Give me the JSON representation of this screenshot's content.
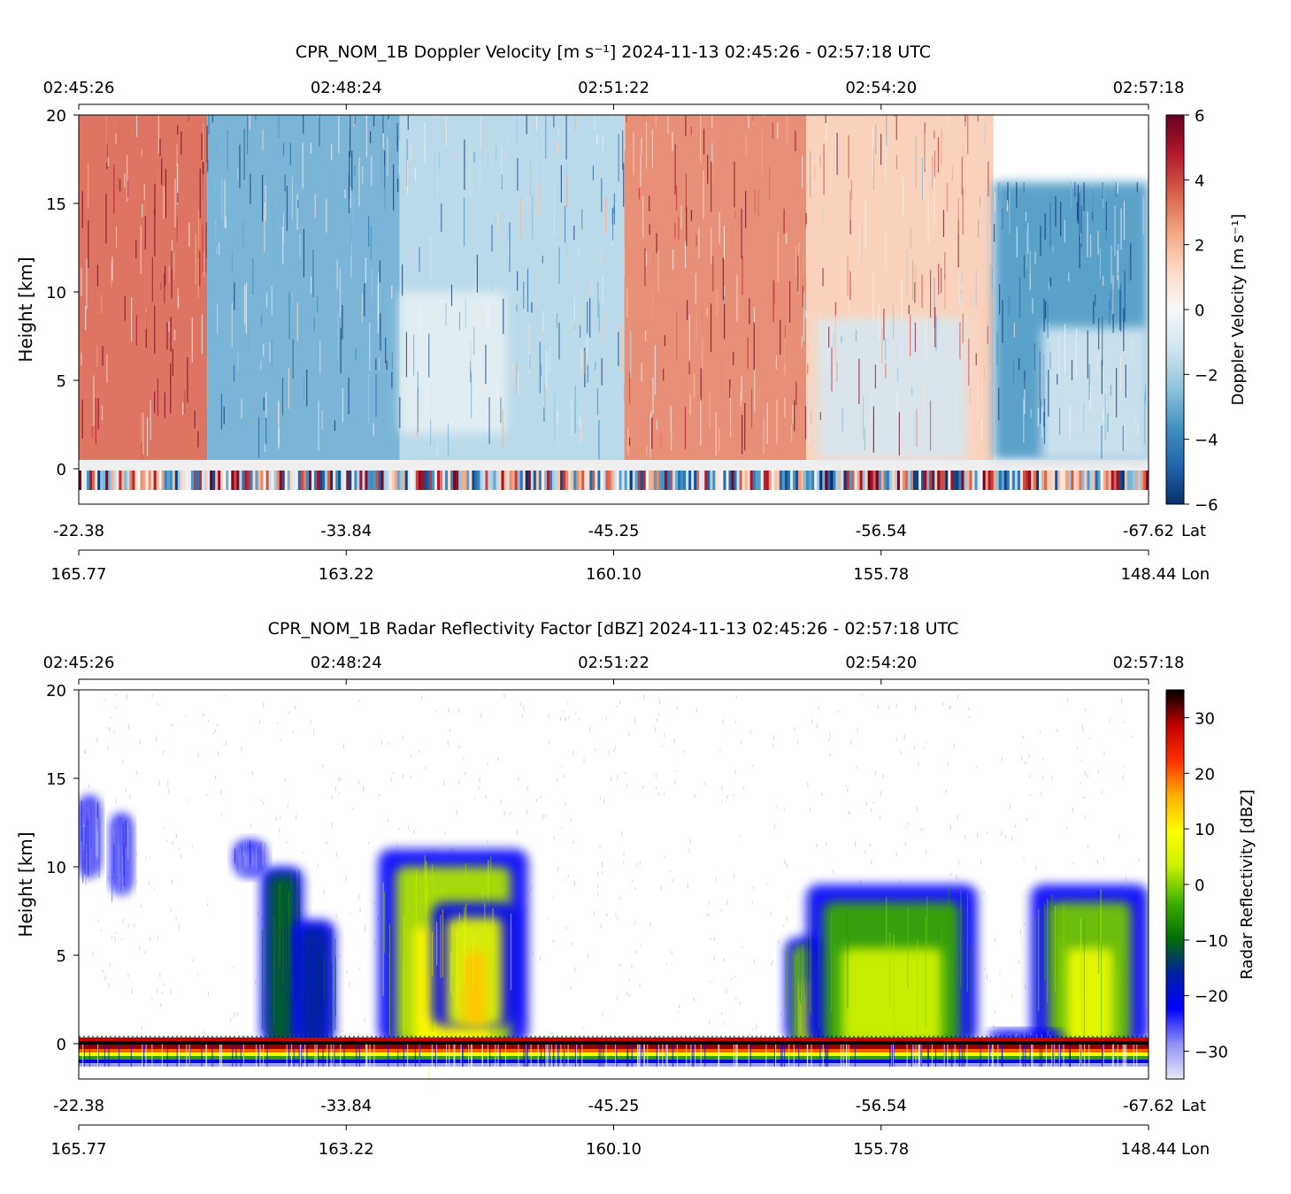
{
  "chart_data": [
    {
      "type": "heatmap",
      "title": "CPR_NOM_1B Doppler Velocity [m s⁻¹]    2024-11-13    02:45:26 - 02:57:18 UTC",
      "ylabel": "Height [km]",
      "ylim": [
        -2,
        20
      ],
      "yticks": [
        0,
        5,
        10,
        15,
        20
      ],
      "time_ticks": [
        "02:45:26",
        "02:48:24",
        "02:51:22",
        "02:54:20",
        "02:57:18"
      ],
      "lat_ticks": [
        "-22.38",
        "-33.84",
        "-45.25",
        "-56.54",
        "-67.62"
      ],
      "lon_ticks": [
        "165.77",
        "163.22",
        "160.10",
        "155.78",
        "148.44"
      ],
      "lat_label": "Lat",
      "lon_label": "Lon",
      "colorbar": {
        "label": "Doppler Velocity [m s⁻¹]",
        "range": [
          -6,
          6
        ],
        "ticks": [
          -6,
          -4,
          -2,
          0,
          2,
          4,
          6
        ],
        "tick_labels": [
          "−6",
          "−4",
          "−2",
          "0",
          "2",
          "4",
          "6"
        ],
        "colormap": [
          "#08306b",
          "#2166ac",
          "#4393c3",
          "#92c5de",
          "#d1e5f0",
          "#f7f7f7",
          "#fddbc7",
          "#f4a582",
          "#d6604d",
          "#b2182b",
          "#67001f"
        ]
      },
      "regions": [
        {
          "x": [
            0.0,
            0.12
          ],
          "y": [
            0.5,
            20
          ],
          "mean_velocity": 3.5
        },
        {
          "x": [
            0.12,
            0.3
          ],
          "y": [
            0.5,
            20
          ],
          "mean_velocity": -3
        },
        {
          "x": [
            0.3,
            0.51
          ],
          "y": [
            0.5,
            20
          ],
          "mean_velocity": -1.8
        },
        {
          "x": [
            0.51,
            0.68
          ],
          "y": [
            0.5,
            20
          ],
          "mean_velocity": 3
        },
        {
          "x": [
            0.68,
            0.855
          ],
          "y": [
            0.5,
            20
          ],
          "mean_velocity": 1.5
        },
        {
          "x": [
            0.855,
            1.0
          ],
          "y": [
            0.5,
            16.2
          ],
          "mean_velocity": -3.5
        },
        {
          "x": [
            0.3,
            0.4
          ],
          "y": [
            2,
            10
          ],
          "mean_velocity": -0.5
        },
        {
          "x": [
            0.69,
            0.83
          ],
          "y": [
            0.5,
            8.5
          ],
          "mean_velocity": -1
        },
        {
          "x": [
            0.9,
            1.0
          ],
          "y": [
            0.5,
            8
          ],
          "mean_velocity": -1
        }
      ]
    },
    {
      "type": "heatmap",
      "title": "CPR_NOM_1B Radar Reflectivity Factor [dBZ]    2024-11-13    02:45:26 - 02:57:18 UTC",
      "ylabel": "Height [km]",
      "ylim": [
        -2,
        20
      ],
      "yticks": [
        0,
        5,
        10,
        15,
        20
      ],
      "time_ticks": [
        "02:45:26",
        "02:48:24",
        "02:51:22",
        "02:54:20",
        "02:57:18"
      ],
      "lat_ticks": [
        "-22.38",
        "-33.84",
        "-45.25",
        "-56.54",
        "-67.62"
      ],
      "lon_ticks": [
        "165.77",
        "163.22",
        "160.10",
        "155.78",
        "148.44"
      ],
      "lat_label": "Lat",
      "lon_label": "Lon",
      "colorbar": {
        "label": "Radar Reflectivity [dBZ]",
        "range": [
          -35,
          35
        ],
        "ticks": [
          -30,
          -20,
          -10,
          0,
          10,
          20,
          30
        ],
        "tick_labels": [
          "−30",
          "−20",
          "−10",
          "0",
          "10",
          "20",
          "30"
        ],
        "colormap": [
          "#e8e8f8",
          "#8f8ff5",
          "#0000ff",
          "#0020a0",
          "#007000",
          "#40b000",
          "#c8f000",
          "#ffff00",
          "#ffb000",
          "#ff3000",
          "#c00000",
          "#000000"
        ]
      },
      "cloud_cells": [
        {
          "x": [
            0.0,
            0.02
          ],
          "y": [
            9.5,
            14
          ],
          "dbz": -22
        },
        {
          "x": [
            0.03,
            0.05
          ],
          "y": [
            8.5,
            13
          ],
          "dbz": -22
        },
        {
          "x": [
            0.145,
            0.175
          ],
          "y": [
            9.5,
            11.5
          ],
          "dbz": -22
        },
        {
          "x": [
            0.17,
            0.21
          ],
          "y": [
            0,
            10
          ],
          "dbz": -5
        },
        {
          "x": [
            0.2,
            0.24
          ],
          "y": [
            0,
            7
          ],
          "dbz": -10
        },
        {
          "x": [
            0.28,
            0.42
          ],
          "y": [
            0,
            11
          ],
          "dbz": 8
        },
        {
          "x": [
            0.33,
            0.41
          ],
          "y": [
            1,
            8
          ],
          "dbz": 12
        },
        {
          "x": [
            0.66,
            0.7
          ],
          "y": [
            0,
            6
          ],
          "dbz": 5
        },
        {
          "x": [
            0.68,
            0.84
          ],
          "y": [
            0,
            9
          ],
          "dbz": 2
        },
        {
          "x": [
            0.89,
            1.0
          ],
          "y": [
            0,
            9
          ],
          "dbz": 5
        },
        {
          "x": [
            0.85,
            0.92
          ],
          "y": [
            0,
            0.8
          ],
          "dbz": -22
        }
      ]
    }
  ]
}
